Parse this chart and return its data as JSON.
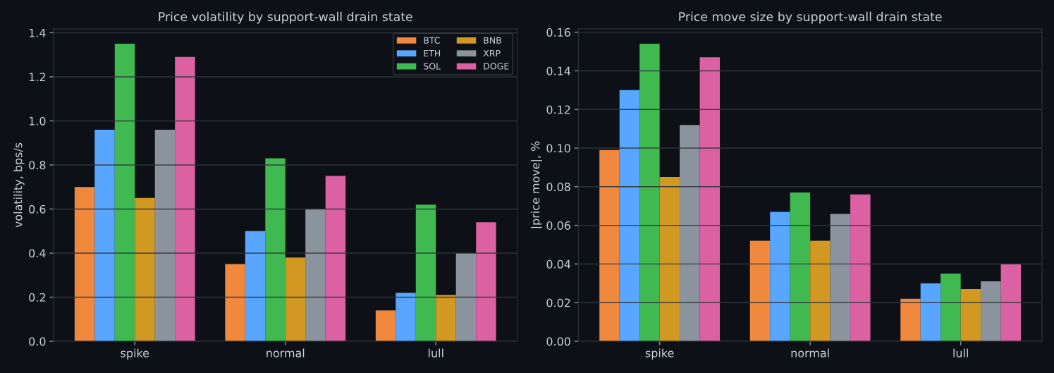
{
  "chart_data": [
    {
      "type": "bar",
      "title": "Price volatility by support-wall drain state",
      "ylabel": "volatility, bps/s",
      "categories": [
        "spike",
        "normal",
        "lull"
      ],
      "series": [
        {
          "name": "BTC",
          "color": "#f0883e",
          "values": [
            0.7,
            0.35,
            0.14
          ]
        },
        {
          "name": "ETH",
          "color": "#58a6ff",
          "values": [
            0.96,
            0.5,
            0.22
          ]
        },
        {
          "name": "SOL",
          "color": "#3fb950",
          "values": [
            1.35,
            0.83,
            0.62
          ]
        },
        {
          "name": "BNB",
          "color": "#d29922",
          "values": [
            0.65,
            0.38,
            0.21
          ]
        },
        {
          "name": "XRP",
          "color": "#8b949e",
          "values": [
            0.96,
            0.6,
            0.4
          ]
        },
        {
          "name": "DOGE",
          "color": "#db61a2",
          "values": [
            1.29,
            0.75,
            0.54
          ]
        }
      ],
      "ylim": [
        0,
        1.4175
      ],
      "yticks": [
        {
          "value": 0,
          "label": "0.0"
        },
        0.2,
        0.4,
        0.6,
        0.8,
        {
          "value": 1,
          "label": "1.0"
        },
        1.2,
        1.4
      ],
      "grid": "y",
      "legend": "top right"
    },
    {
      "type": "bar",
      "title": "Price move size by support-wall drain state",
      "ylabel": "|price move|, %",
      "categories": [
        "spike",
        "normal",
        "lull"
      ],
      "series": [
        {
          "color": "#f0883e",
          "values": [
            0.099,
            0.052,
            0.022
          ]
        },
        {
          "color": "#58a6ff",
          "values": [
            0.13,
            0.067,
            0.03
          ]
        },
        {
          "color": "#3fb950",
          "values": [
            0.154,
            0.077,
            0.035
          ]
        },
        {
          "color": "#d29922",
          "values": [
            0.085,
            0.052,
            0.027
          ]
        },
        {
          "color": "#8b949e",
          "values": [
            0.112,
            0.066,
            0.031
          ]
        },
        {
          "color": "#db61a2",
          "values": [
            0.147,
            0.076,
            0.04
          ]
        }
      ],
      "ylim": [
        0,
        0.1617
      ],
      "yticks": [
        {
          "value": 0,
          "label": "0.00"
        },
        0.02,
        0.04,
        0.06,
        0.08,
        {
          "value": 0.1,
          "label": "0.10"
        },
        {
          "value": 0.12,
          "label": "0.12"
        },
        {
          "value": 0.14,
          "label": "0.14"
        },
        {
          "value": 0.16,
          "label": "0.16"
        }
      ],
      "grid": "y"
    }
  ]
}
